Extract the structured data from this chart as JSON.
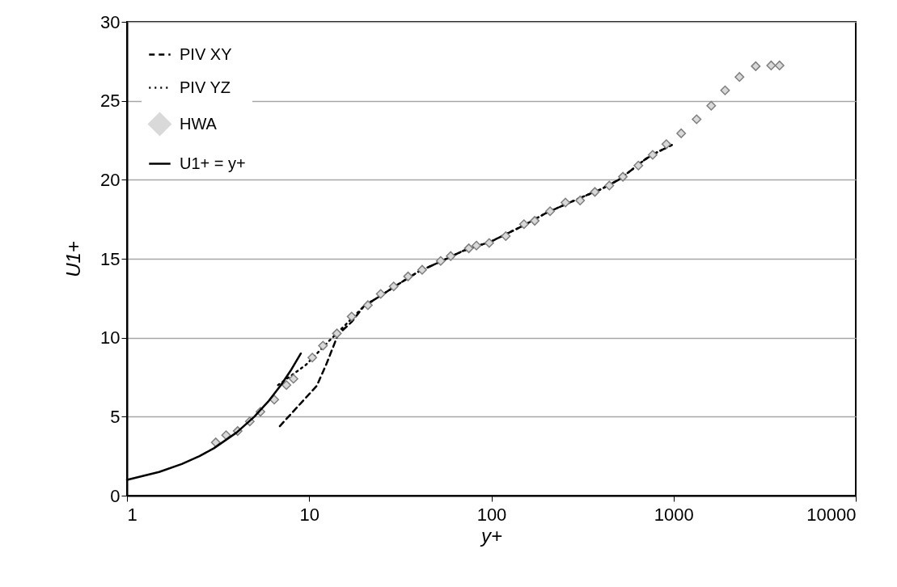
{
  "chart_data": {
    "type": "line",
    "xlabel": "y+",
    "ylabel": "U1+",
    "log": "x",
    "xlim": [
      1,
      10000
    ],
    "xticks": [
      1,
      10,
      100,
      {
        "value": 1000,
        "label": "1000"
      },
      {
        "value": 10000,
        "label": "10000"
      }
    ],
    "ylim": [
      0,
      30
    ],
    "yticks": [
      0,
      5,
      10,
      15,
      20,
      25,
      30
    ],
    "grid": "y",
    "legend": "top left",
    "series": [
      {
        "name": "PIV XY",
        "type": "line",
        "color": "#000000",
        "line_style": "dashed",
        "marker": "none",
        "x": [
          6.9,
          11,
          12.4,
          14.4,
          17.1,
          20,
          25,
          30,
          40,
          50,
          70,
          100,
          150,
          200,
          300,
          400,
          500,
          600,
          700,
          800,
          977
        ],
        "values": [
          4.4,
          6.95,
          8.3,
          10.2,
          11.0,
          12.0,
          12.7,
          13.3,
          14.2,
          14.7,
          15.5,
          16.1,
          17.1,
          17.9,
          18.8,
          19.4,
          20.0,
          20.7,
          21.3,
          21.7,
          22.2
        ]
      },
      {
        "name": "PIV YZ",
        "type": "line",
        "color": "#000000",
        "line_style": "dotted",
        "marker": "none",
        "x": [
          6.75,
          9.6,
          13,
          16,
          20,
          25,
          30,
          40,
          50,
          70,
          100,
          150,
          200,
          300,
          400,
          500,
          600,
          700,
          800,
          977
        ],
        "values": [
          7.0,
          8.28,
          9.85,
          10.87,
          12.0,
          12.7,
          13.3,
          14.2,
          14.7,
          15.5,
          16.1,
          17.1,
          17.9,
          18.8,
          19.4,
          20.0,
          20.7,
          21.3,
          21.7,
          22.2
        ]
      },
      {
        "name": "HWA",
        "type": "scatter",
        "color": "#d9d9d9",
        "marker": "diamond",
        "x": [
          3.07,
          3.5,
          4.05,
          4.72,
          5.4,
          6.43,
          7.5,
          8.2,
          10.4,
          11.9,
          14.2,
          17.1,
          21,
          24.7,
          29.1,
          34.9,
          41.7,
          52.7,
          59.8,
          75.2,
          82.8,
          97.3,
          120,
          151,
          173,
          210,
          255,
          307,
          370,
          444,
          527,
          641,
          768,
          913,
          1101,
          1338,
          1610,
          1918,
          2300,
          2825,
          3433,
          3817
        ],
        "values": [
          3.37,
          3.83,
          4.09,
          4.7,
          5.31,
          6.08,
          7.0,
          7.4,
          8.74,
          9.5,
          10.27,
          11.34,
          12.06,
          12.77,
          13.25,
          13.88,
          14.3,
          14.86,
          15.17,
          15.66,
          15.83,
          16.0,
          16.43,
          17.19,
          17.4,
          18.01,
          18.56,
          18.69,
          19.23,
          19.63,
          20.19,
          20.9,
          21.58,
          22.26,
          22.94,
          23.83,
          24.69,
          25.66,
          26.51,
          27.19,
          27.24,
          27.24
        ]
      },
      {
        "name": "U1+ = y+",
        "type": "line",
        "color": "#000000",
        "line_style": "solid",
        "marker": "none",
        "x": [
          1,
          1.5,
          2,
          2.5,
          3,
          4,
          5,
          6,
          7,
          8,
          9
        ],
        "values": [
          1,
          1.5,
          2,
          2.5,
          3,
          4,
          5,
          6,
          7,
          8,
          9
        ]
      }
    ]
  }
}
